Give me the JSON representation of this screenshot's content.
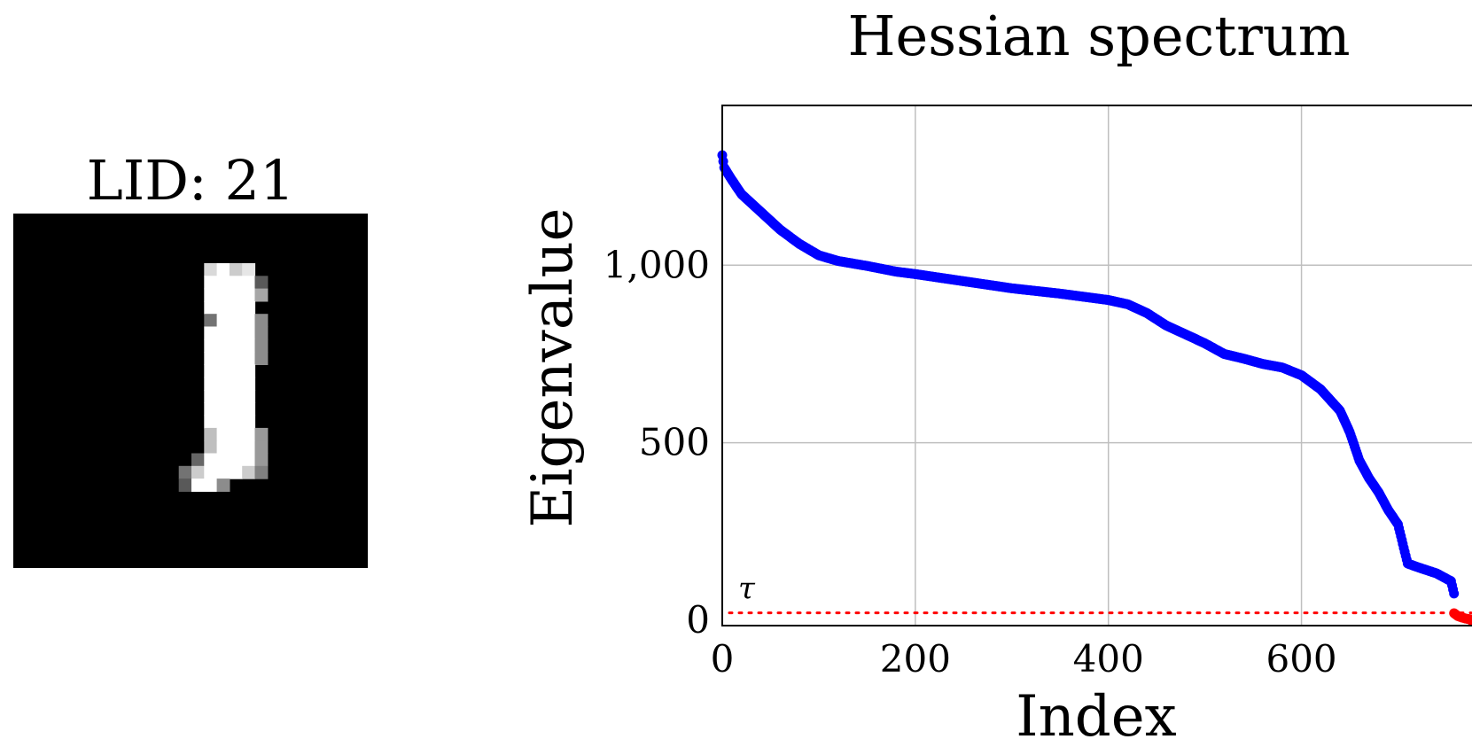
{
  "image_panel": {
    "title": "LID: 21",
    "background_color": "#000000",
    "pixels_on": [
      {
        "r": 0,
        "c": 1,
        "v": 0.85
      },
      {
        "r": 0,
        "c": 2,
        "v": 1.0
      },
      {
        "r": 0,
        "c": 3,
        "v": 0.8
      },
      {
        "r": 0,
        "c": 4,
        "v": 0.9
      },
      {
        "r": 1,
        "c": 1,
        "v": 1.0
      },
      {
        "r": 1,
        "c": 2,
        "v": 1.0
      },
      {
        "r": 1,
        "c": 3,
        "v": 1.0
      },
      {
        "r": 1,
        "c": 4,
        "v": 1.0
      },
      {
        "r": 1,
        "c": 5,
        "v": 0.35
      },
      {
        "r": 2,
        "c": 1,
        "v": 1.0
      },
      {
        "r": 2,
        "c": 2,
        "v": 1.0
      },
      {
        "r": 2,
        "c": 3,
        "v": 1.0
      },
      {
        "r": 2,
        "c": 4,
        "v": 1.0
      },
      {
        "r": 2,
        "c": 5,
        "v": 0.65
      },
      {
        "r": 3,
        "c": 1,
        "v": 1.0
      },
      {
        "r": 3,
        "c": 2,
        "v": 1.0
      },
      {
        "r": 3,
        "c": 3,
        "v": 1.0
      },
      {
        "r": 3,
        "c": 4,
        "v": 1.0
      },
      {
        "r": 4,
        "c": 1,
        "v": 0.45
      },
      {
        "r": 4,
        "c": 2,
        "v": 1.0
      },
      {
        "r": 4,
        "c": 3,
        "v": 1.0
      },
      {
        "r": 4,
        "c": 4,
        "v": 1.0
      },
      {
        "r": 4,
        "c": 5,
        "v": 0.55
      },
      {
        "r": 5,
        "c": 1,
        "v": 1.0
      },
      {
        "r": 5,
        "c": 2,
        "v": 1.0
      },
      {
        "r": 5,
        "c": 3,
        "v": 1.0
      },
      {
        "r": 5,
        "c": 4,
        "v": 1.0
      },
      {
        "r": 5,
        "c": 5,
        "v": 0.55
      },
      {
        "r": 6,
        "c": 1,
        "v": 1.0
      },
      {
        "r": 6,
        "c": 2,
        "v": 1.0
      },
      {
        "r": 6,
        "c": 3,
        "v": 1.0
      },
      {
        "r": 6,
        "c": 4,
        "v": 1.0
      },
      {
        "r": 6,
        "c": 5,
        "v": 0.55
      },
      {
        "r": 7,
        "c": 1,
        "v": 1.0
      },
      {
        "r": 7,
        "c": 2,
        "v": 1.0
      },
      {
        "r": 7,
        "c": 3,
        "v": 1.0
      },
      {
        "r": 7,
        "c": 4,
        "v": 1.0
      },
      {
        "r": 7,
        "c": 5,
        "v": 0.55
      },
      {
        "r": 8,
        "c": 1,
        "v": 1.0
      },
      {
        "r": 8,
        "c": 2,
        "v": 1.0
      },
      {
        "r": 8,
        "c": 3,
        "v": 1.0
      },
      {
        "r": 8,
        "c": 4,
        "v": 1.0
      },
      {
        "r": 9,
        "c": 1,
        "v": 1.0
      },
      {
        "r": 9,
        "c": 2,
        "v": 1.0
      },
      {
        "r": 9,
        "c": 3,
        "v": 1.0
      },
      {
        "r": 9,
        "c": 4,
        "v": 1.0
      },
      {
        "r": 10,
        "c": 1,
        "v": 1.0
      },
      {
        "r": 10,
        "c": 2,
        "v": 1.0
      },
      {
        "r": 10,
        "c": 3,
        "v": 1.0
      },
      {
        "r": 10,
        "c": 4,
        "v": 1.0
      },
      {
        "r": 11,
        "c": 1,
        "v": 1.0
      },
      {
        "r": 11,
        "c": 2,
        "v": 1.0
      },
      {
        "r": 11,
        "c": 3,
        "v": 1.0
      },
      {
        "r": 11,
        "c": 4,
        "v": 1.0
      },
      {
        "r": 12,
        "c": 1,
        "v": 1.0
      },
      {
        "r": 12,
        "c": 2,
        "v": 1.0
      },
      {
        "r": 12,
        "c": 3,
        "v": 1.0
      },
      {
        "r": 12,
        "c": 4,
        "v": 1.0
      },
      {
        "r": 13,
        "c": 1,
        "v": 0.75
      },
      {
        "r": 13,
        "c": 2,
        "v": 1.0
      },
      {
        "r": 13,
        "c": 3,
        "v": 1.0
      },
      {
        "r": 13,
        "c": 4,
        "v": 1.0
      },
      {
        "r": 13,
        "c": 5,
        "v": 0.6
      },
      {
        "r": 14,
        "c": 1,
        "v": 0.75
      },
      {
        "r": 14,
        "c": 2,
        "v": 1.0
      },
      {
        "r": 14,
        "c": 3,
        "v": 1.0
      },
      {
        "r": 14,
        "c": 4,
        "v": 1.0
      },
      {
        "r": 14,
        "c": 5,
        "v": 0.6
      },
      {
        "r": 15,
        "c": 0,
        "v": 0.4
      },
      {
        "r": 15,
        "c": 1,
        "v": 1.0
      },
      {
        "r": 15,
        "c": 2,
        "v": 1.0
      },
      {
        "r": 15,
        "c": 3,
        "v": 1.0
      },
      {
        "r": 15,
        "c": 4,
        "v": 1.0
      },
      {
        "r": 15,
        "c": 5,
        "v": 0.6
      },
      {
        "r": 16,
        "c": -1,
        "v": 0.45
      },
      {
        "r": 16,
        "c": 0,
        "v": 0.8
      },
      {
        "r": 16,
        "c": 1,
        "v": 1.0
      },
      {
        "r": 16,
        "c": 2,
        "v": 1.0
      },
      {
        "r": 16,
        "c": 3,
        "v": 1.0
      },
      {
        "r": 16,
        "c": 4,
        "v": 0.8
      },
      {
        "r": 16,
        "c": 5,
        "v": 0.5
      },
      {
        "r": 17,
        "c": -1,
        "v": 0.35
      },
      {
        "r": 17,
        "c": 0,
        "v": 1.0
      },
      {
        "r": 17,
        "c": 1,
        "v": 1.0
      },
      {
        "r": 17,
        "c": 2,
        "v": 0.55
      }
    ]
  },
  "chart_data": {
    "type": "scatter",
    "title": "Hessian spectrum",
    "xlabel": "Index",
    "ylabel": "Eigenvalue",
    "xlim": [
      0,
      784
    ],
    "ylim": [
      -15,
      1450
    ],
    "xticks": [
      0,
      200,
      400,
      600
    ],
    "xtick_labels": [
      "0",
      "200",
      "400",
      "600"
    ],
    "yticks": [
      0,
      500,
      1000
    ],
    "ytick_labels": [
      "0",
      "500",
      "1,000"
    ],
    "grid": true,
    "threshold": {
      "label": "τ",
      "value": 21,
      "color": "#ff0000",
      "style": "dotted"
    },
    "series": [
      {
        "color": "#0000ff",
        "points": [
          [
            0,
            1310
          ],
          [
            2,
            1275
          ],
          [
            10,
            1240
          ],
          [
            20,
            1200
          ],
          [
            40,
            1150
          ],
          [
            60,
            1100
          ],
          [
            80,
            1060
          ],
          [
            100,
            1028
          ],
          [
            120,
            1012
          ],
          [
            150,
            998
          ],
          [
            180,
            982
          ],
          [
            200,
            975
          ],
          [
            250,
            955
          ],
          [
            300,
            935
          ],
          [
            350,
            920
          ],
          [
            400,
            902
          ],
          [
            420,
            890
          ],
          [
            440,
            865
          ],
          [
            460,
            830
          ],
          [
            480,
            805
          ],
          [
            500,
            780
          ],
          [
            520,
            750
          ],
          [
            540,
            737
          ],
          [
            560,
            722
          ],
          [
            580,
            712
          ],
          [
            600,
            690
          ],
          [
            620,
            650
          ],
          [
            640,
            590
          ],
          [
            650,
            530
          ],
          [
            660,
            450
          ],
          [
            670,
            400
          ],
          [
            680,
            360
          ],
          [
            690,
            310
          ],
          [
            700,
            270
          ],
          [
            710,
            160
          ],
          [
            720,
            150
          ],
          [
            740,
            132
          ],
          [
            755,
            110
          ],
          [
            758,
            75
          ]
        ]
      },
      {
        "color": "#ff0000",
        "points": [
          [
            758,
            20
          ],
          [
            762,
            12
          ],
          [
            766,
            8
          ],
          [
            770,
            5
          ],
          [
            774,
            3
          ],
          [
            778,
            2
          ],
          [
            782,
            1
          ],
          [
            784,
            0
          ]
        ]
      }
    ]
  }
}
